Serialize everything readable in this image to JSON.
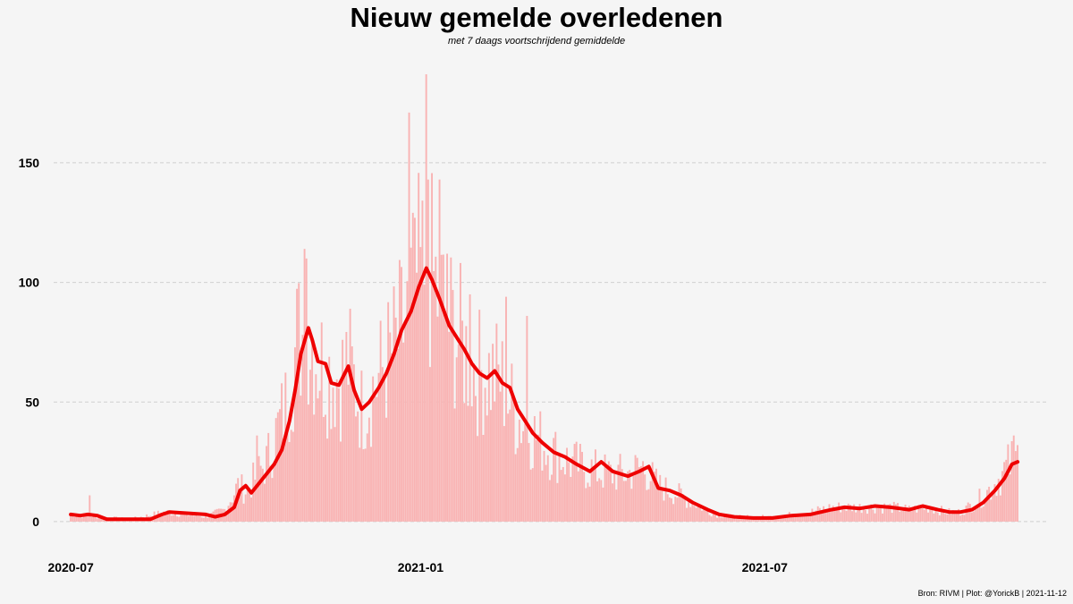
{
  "title": "Nieuw gemelde overledenen",
  "subtitle": "met 7 daags voortschrijdend gemiddelde",
  "caption": "Bron: RIVM | Plot: @YorickB |  2021-11-12",
  "colors": {
    "bars": "#f9b3b3",
    "line": "#ee0000",
    "grid": "#cfcfcf",
    "background": "#f5f5f5"
  },
  "chart_data": {
    "type": "bar",
    "x_start": "2020-07-01",
    "x_end": "2021-11-11",
    "xlim": [
      "2020-06-22",
      "2021-11-26"
    ],
    "ylim": [
      -12,
      190
    ],
    "y_ticks": [
      0,
      50,
      100,
      150
    ],
    "y_tick_labels": [
      "0",
      "50",
      "100",
      "150"
    ],
    "x_ticks": [
      "2020-07-01",
      "2021-01-01",
      "2021-07-01"
    ],
    "x_tick_labels": [
      "2020-07",
      "2021-01",
      "2021-07"
    ],
    "grid": "horizontal dashed",
    "series": [
      {
        "name": "",
        "kind": "bar",
        "description": "dagelijks gemeld",
        "anchors": [
          [
            "2020-07-01",
            3
          ],
          [
            "2020-08-01",
            1
          ],
          [
            "2020-08-20",
            4
          ],
          [
            "2020-09-10",
            2
          ],
          [
            "2020-09-20",
            5
          ],
          [
            "2020-09-27",
            15
          ],
          [
            "2020-10-01",
            13
          ],
          [
            "2020-10-04",
            16
          ],
          [
            "2020-10-12",
            25
          ],
          [
            "2020-10-22",
            48
          ],
          [
            "2020-10-28",
            75
          ],
          [
            "2020-11-03",
            82
          ],
          [
            "2020-11-08",
            68
          ],
          [
            "2020-11-14",
            62
          ],
          [
            "2020-11-20",
            60
          ],
          [
            "2020-11-24",
            67
          ],
          [
            "2020-12-01",
            47
          ],
          [
            "2020-12-10",
            60
          ],
          [
            "2020-12-20",
            75
          ],
          [
            "2020-12-25",
            85
          ],
          [
            "2020-12-30",
            100
          ],
          [
            "2021-01-05",
            107
          ],
          [
            "2021-01-10",
            95
          ],
          [
            "2021-01-15",
            85
          ],
          [
            "2021-01-22",
            75
          ],
          [
            "2021-01-30",
            63
          ],
          [
            "2021-02-05",
            62
          ],
          [
            "2021-02-12",
            60
          ],
          [
            "2021-02-20",
            45
          ],
          [
            "2021-03-01",
            37
          ],
          [
            "2021-03-10",
            30
          ],
          [
            "2021-03-20",
            25
          ],
          [
            "2021-03-30",
            22
          ],
          [
            "2021-04-10",
            20
          ],
          [
            "2021-04-20",
            20
          ],
          [
            "2021-04-28",
            23
          ],
          [
            "2021-05-06",
            15
          ],
          [
            "2021-05-15",
            12
          ],
          [
            "2021-05-25",
            8
          ],
          [
            "2021-06-05",
            3
          ],
          [
            "2021-06-15",
            2
          ],
          [
            "2021-06-25",
            2
          ],
          [
            "2021-07-05",
            2
          ],
          [
            "2021-07-15",
            3
          ],
          [
            "2021-07-25",
            4
          ],
          [
            "2021-08-05",
            6
          ],
          [
            "2021-08-15",
            6
          ],
          [
            "2021-08-25",
            6
          ],
          [
            "2021-09-05",
            6
          ],
          [
            "2021-09-15",
            5
          ],
          [
            "2021-09-25",
            6
          ],
          [
            "2021-10-05",
            4
          ],
          [
            "2021-10-12",
            4
          ],
          [
            "2021-10-20",
            8
          ],
          [
            "2021-10-28",
            14
          ],
          [
            "2021-11-03",
            20
          ],
          [
            "2021-11-08",
            25
          ],
          [
            "2021-11-11",
            26
          ]
        ],
        "peaks": [
          [
            "2020-07-11",
            11
          ],
          [
            "2020-10-07",
            36
          ],
          [
            "2020-11-01",
            114
          ],
          [
            "2020-11-02",
            110
          ],
          [
            "2020-12-26",
            171
          ],
          [
            "2020-12-29",
            127
          ],
          [
            "2021-01-04",
            187
          ],
          [
            "2021-01-05",
            143
          ],
          [
            "2021-01-11",
            143
          ],
          [
            "2021-01-15",
            112
          ],
          [
            "2021-01-27",
            95
          ],
          [
            "2021-02-15",
            94
          ],
          [
            "2021-02-26",
            86
          ],
          [
            "2021-11-09",
            36
          ],
          [
            "2021-11-11",
            32
          ]
        ]
      },
      {
        "name": "",
        "kind": "line",
        "description": "7 daags voortschrijdend gemiddelde",
        "points": [
          [
            "2020-07-01",
            3
          ],
          [
            "2020-07-06",
            2.5
          ],
          [
            "2020-07-10",
            3
          ],
          [
            "2020-07-15",
            2.5
          ],
          [
            "2020-07-20",
            1
          ],
          [
            "2020-08-01",
            1
          ],
          [
            "2020-08-12",
            1
          ],
          [
            "2020-08-18",
            3
          ],
          [
            "2020-08-22",
            4
          ],
          [
            "2020-09-01",
            3.5
          ],
          [
            "2020-09-10",
            3
          ],
          [
            "2020-09-15",
            2
          ],
          [
            "2020-09-20",
            3
          ],
          [
            "2020-09-25",
            6
          ],
          [
            "2020-09-28",
            13
          ],
          [
            "2020-10-01",
            15
          ],
          [
            "2020-10-04",
            12
          ],
          [
            "2020-10-08",
            16
          ],
          [
            "2020-10-12",
            20
          ],
          [
            "2020-10-16",
            24
          ],
          [
            "2020-10-20",
            30
          ],
          [
            "2020-10-24",
            42
          ],
          [
            "2020-10-27",
            55
          ],
          [
            "2020-10-30",
            70
          ],
          [
            "2020-11-03",
            81
          ],
          [
            "2020-11-05",
            76
          ],
          [
            "2020-11-08",
            67
          ],
          [
            "2020-11-12",
            66
          ],
          [
            "2020-11-15",
            58
          ],
          [
            "2020-11-19",
            57
          ],
          [
            "2020-11-24",
            65
          ],
          [
            "2020-11-27",
            55
          ],
          [
            "2020-12-01",
            47
          ],
          [
            "2020-12-05",
            50
          ],
          [
            "2020-12-10",
            56
          ],
          [
            "2020-12-14",
            62
          ],
          [
            "2020-12-18",
            70
          ],
          [
            "2020-12-22",
            80
          ],
          [
            "2020-12-27",
            88
          ],
          [
            "2020-12-31",
            98
          ],
          [
            "2021-01-04",
            106
          ],
          [
            "2021-01-07",
            101
          ],
          [
            "2021-01-11",
            93
          ],
          [
            "2021-01-16",
            82
          ],
          [
            "2021-01-20",
            77
          ],
          [
            "2021-01-24",
            72
          ],
          [
            "2021-01-28",
            66
          ],
          [
            "2021-02-01",
            62
          ],
          [
            "2021-02-05",
            60
          ],
          [
            "2021-02-09",
            63
          ],
          [
            "2021-02-13",
            58
          ],
          [
            "2021-02-17",
            56
          ],
          [
            "2021-02-21",
            47
          ],
          [
            "2021-02-25",
            42
          ],
          [
            "2021-03-01",
            37
          ],
          [
            "2021-03-06",
            33
          ],
          [
            "2021-03-12",
            29
          ],
          [
            "2021-03-18",
            27
          ],
          [
            "2021-03-24",
            24
          ],
          [
            "2021-03-31",
            21
          ],
          [
            "2021-04-06",
            25
          ],
          [
            "2021-04-12",
            21
          ],
          [
            "2021-04-20",
            19
          ],
          [
            "2021-04-26",
            21
          ],
          [
            "2021-05-01",
            23
          ],
          [
            "2021-05-06",
            14
          ],
          [
            "2021-05-12",
            13
          ],
          [
            "2021-05-18",
            11
          ],
          [
            "2021-05-24",
            8
          ],
          [
            "2021-06-01",
            5
          ],
          [
            "2021-06-07",
            3
          ],
          [
            "2021-06-15",
            2
          ],
          [
            "2021-06-25",
            1.5
          ],
          [
            "2021-07-05",
            1.5
          ],
          [
            "2021-07-15",
            2.5
          ],
          [
            "2021-07-25",
            3
          ],
          [
            "2021-08-05",
            5
          ],
          [
            "2021-08-12",
            6
          ],
          [
            "2021-08-20",
            5.5
          ],
          [
            "2021-08-28",
            6.5
          ],
          [
            "2021-09-05",
            6
          ],
          [
            "2021-09-15",
            5
          ],
          [
            "2021-09-22",
            6.5
          ],
          [
            "2021-09-30",
            5
          ],
          [
            "2021-10-06",
            4
          ],
          [
            "2021-10-12",
            4
          ],
          [
            "2021-10-18",
            5
          ],
          [
            "2021-10-24",
            8
          ],
          [
            "2021-10-30",
            13
          ],
          [
            "2021-11-04",
            18
          ],
          [
            "2021-11-08",
            24
          ],
          [
            "2021-11-11",
            25
          ]
        ]
      }
    ]
  }
}
